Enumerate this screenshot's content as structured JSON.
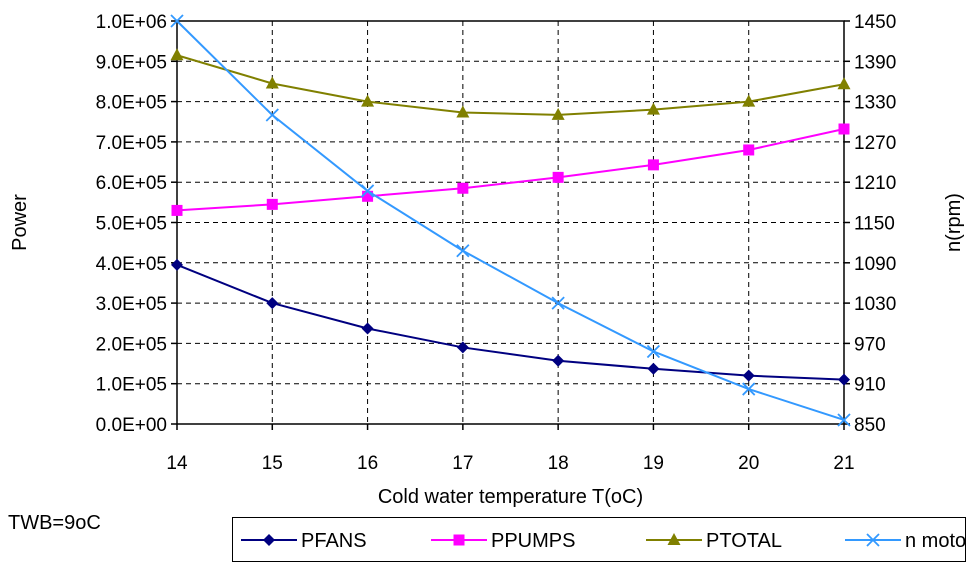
{
  "chart_data": {
    "type": "line",
    "x": [
      14,
      15,
      16,
      17,
      18,
      19,
      20,
      21
    ],
    "xlabel": "Cold water temperature T(oC)",
    "ylabel": "Power",
    "y2label": "n(rpm)",
    "ylim": [
      0,
      1000000
    ],
    "y2lim": [
      850,
      1450
    ],
    "y_ticks": [
      0,
      100000,
      200000,
      300000,
      400000,
      500000,
      600000,
      700000,
      800000,
      900000,
      1000000
    ],
    "y_tick_labels": [
      "0.0E+00",
      "1.0E+05",
      "2.0E+05",
      "3.0E+05",
      "4.0E+05",
      "5.0E+05",
      "6.0E+05",
      "7.0E+05",
      "8.0E+05",
      "9.0E+05",
      "1.0E+06"
    ],
    "y2_ticks": [
      850,
      910,
      970,
      1030,
      1090,
      1150,
      1210,
      1270,
      1330,
      1390,
      1450
    ],
    "grid": true,
    "legend_position": "bottom",
    "series": [
      {
        "name": "PFANS",
        "axis": "left",
        "color": "#000080",
        "marker": "diamond",
        "values": [
          395000,
          300000,
          237000,
          190000,
          157000,
          137000,
          120000,
          110000
        ]
      },
      {
        "name": "PPUMPS",
        "axis": "left",
        "color": "#FF00FF",
        "marker": "square",
        "values": [
          530000,
          545000,
          565000,
          585000,
          612000,
          643000,
          680000,
          732000
        ]
      },
      {
        "name": "PTOTAL",
        "axis": "left",
        "color": "#808000",
        "marker": "triangle",
        "values": [
          915000,
          845000,
          800000,
          773000,
          767000,
          780000,
          800000,
          843000
        ]
      },
      {
        "name": "n motor",
        "axis": "right",
        "color": "#3399FF",
        "marker": "x",
        "values": [
          1450,
          1310,
          1197,
          1108,
          1030,
          958,
          902,
          856
        ]
      }
    ],
    "annotations": [
      "TWB=9oC"
    ]
  }
}
